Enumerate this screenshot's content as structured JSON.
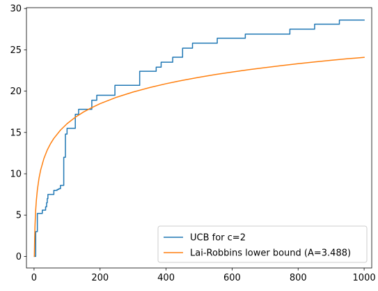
{
  "chart_data": {
    "type": "line",
    "title": "",
    "xlabel": "",
    "ylabel": "",
    "xlim": [
      -23,
      1023
    ],
    "ylim": [
      -1.4,
      30.1
    ],
    "xticks": [
      0,
      200,
      400,
      600,
      800,
      1000
    ],
    "yticks": [
      0,
      5,
      10,
      15,
      20,
      25,
      30
    ],
    "grid": false,
    "legend_position": "lower-right",
    "series": [
      {
        "name": "UCB for c=2",
        "color": "#1f77b4",
        "style": "step",
        "x": [
          1,
          5,
          10,
          12,
          20,
          25,
          30,
          35,
          38,
          40,
          42,
          45,
          55,
          60,
          70,
          75,
          80,
          90,
          95,
          100,
          120,
          125,
          135,
          170,
          175,
          190,
          245,
          320,
          370,
          385,
          395,
          420,
          450,
          480,
          555,
          640,
          775,
          850,
          925,
          1000
        ],
        "values": [
          0,
          3.0,
          5.2,
          5.2,
          5.2,
          5.6,
          5.6,
          6.0,
          6.5,
          7.0,
          7.5,
          7.5,
          7.5,
          8.0,
          8.1,
          8.2,
          8.6,
          12.0,
          14.8,
          15.5,
          15.5,
          17.2,
          17.8,
          17.8,
          18.9,
          19.5,
          20.7,
          22.4,
          22.9,
          23.5,
          23.5,
          24.1,
          25.2,
          25.8,
          26.4,
          26.9,
          27.5,
          28.1,
          28.6,
          28.6
        ]
      },
      {
        "name": "Lai-Robbins lower bound (A=3.488)",
        "color": "#ff7f0e",
        "style": "smooth",
        "coefficient": 3.488,
        "x": [
          1,
          2,
          3,
          5,
          7,
          10,
          15,
          20,
          30,
          40,
          50,
          60,
          80,
          100,
          125,
          150,
          175,
          200,
          250,
          300,
          350,
          400,
          450,
          500,
          550,
          600,
          650,
          700,
          750,
          800,
          850,
          900,
          950,
          1000
        ],
        "values": [
          0.0,
          2.42,
          3.83,
          5.61,
          6.79,
          8.03,
          9.45,
          10.45,
          11.86,
          12.87,
          13.65,
          14.28,
          15.28,
          16.06,
          16.84,
          17.48,
          18.01,
          18.48,
          19.26,
          19.89,
          20.43,
          20.9,
          21.31,
          21.68,
          22.01,
          22.31,
          22.59,
          22.85,
          23.09,
          23.32,
          23.53,
          23.73,
          23.92,
          24.09
        ]
      }
    ]
  }
}
